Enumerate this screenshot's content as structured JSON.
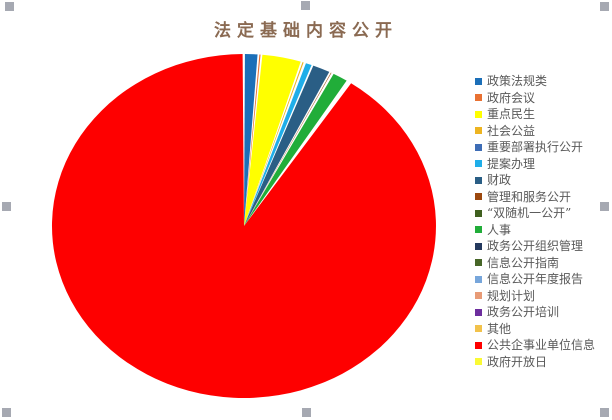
{
  "title": "法定基础内容公开",
  "chart_data": {
    "type": "pie",
    "title": "法定基础内容公开",
    "legend_position": "right",
    "start_angle_deg": 0,
    "direction": "clockwise",
    "items": [
      {
        "label": "政策法规类",
        "value": 1.2,
        "color": "#1C6FB8"
      },
      {
        "label": "政府会议",
        "value": 0.25,
        "color": "#E97132"
      },
      {
        "label": "重点民生",
        "value": 3.4,
        "color": "#FFFF00"
      },
      {
        "label": "社会公益",
        "value": 0.25,
        "color": "#EDB421"
      },
      {
        "label": "重要部署执行公开",
        "value": 0.05,
        "color": "#3E6DB6"
      },
      {
        "label": "提案办理",
        "value": 0.65,
        "color": "#1FAEE9"
      },
      {
        "label": "财政",
        "value": 1.6,
        "color": "#2A5E85"
      },
      {
        "label": "管理和服务公开",
        "value": 0.2,
        "color": "#9C480E"
      },
      {
        "label": "“双随机一公开”",
        "value": 0.05,
        "color": "#40601F"
      },
      {
        "label": "人事",
        "value": 1.4,
        "color": "#21AD39"
      },
      {
        "label": "政务公开组织管理",
        "value": 0.05,
        "color": "#24395E"
      },
      {
        "label": "信息公开指南",
        "value": 0.04,
        "color": "#476628"
      },
      {
        "label": "信息公开年度报告",
        "value": 0.04,
        "color": "#77A6DB"
      },
      {
        "label": "规划计划",
        "value": 0.04,
        "color": "#E89B76"
      },
      {
        "label": "政务公开培训",
        "value": 0.04,
        "color": "#6D2E9E"
      },
      {
        "label": "其他",
        "value": 0.08,
        "color": "#F2C24B"
      },
      {
        "label": "公共企事业单位信息",
        "value": 90.6,
        "color": "#FE0000"
      },
      {
        "label": "政府开放日",
        "value": 0.04,
        "color": "#FAFA35"
      }
    ]
  },
  "ui": {
    "title_color": "#8A6A52",
    "legend_text_color": "#595959",
    "handle_color": "#A6A9B2",
    "background": "#FFFFFF"
  }
}
